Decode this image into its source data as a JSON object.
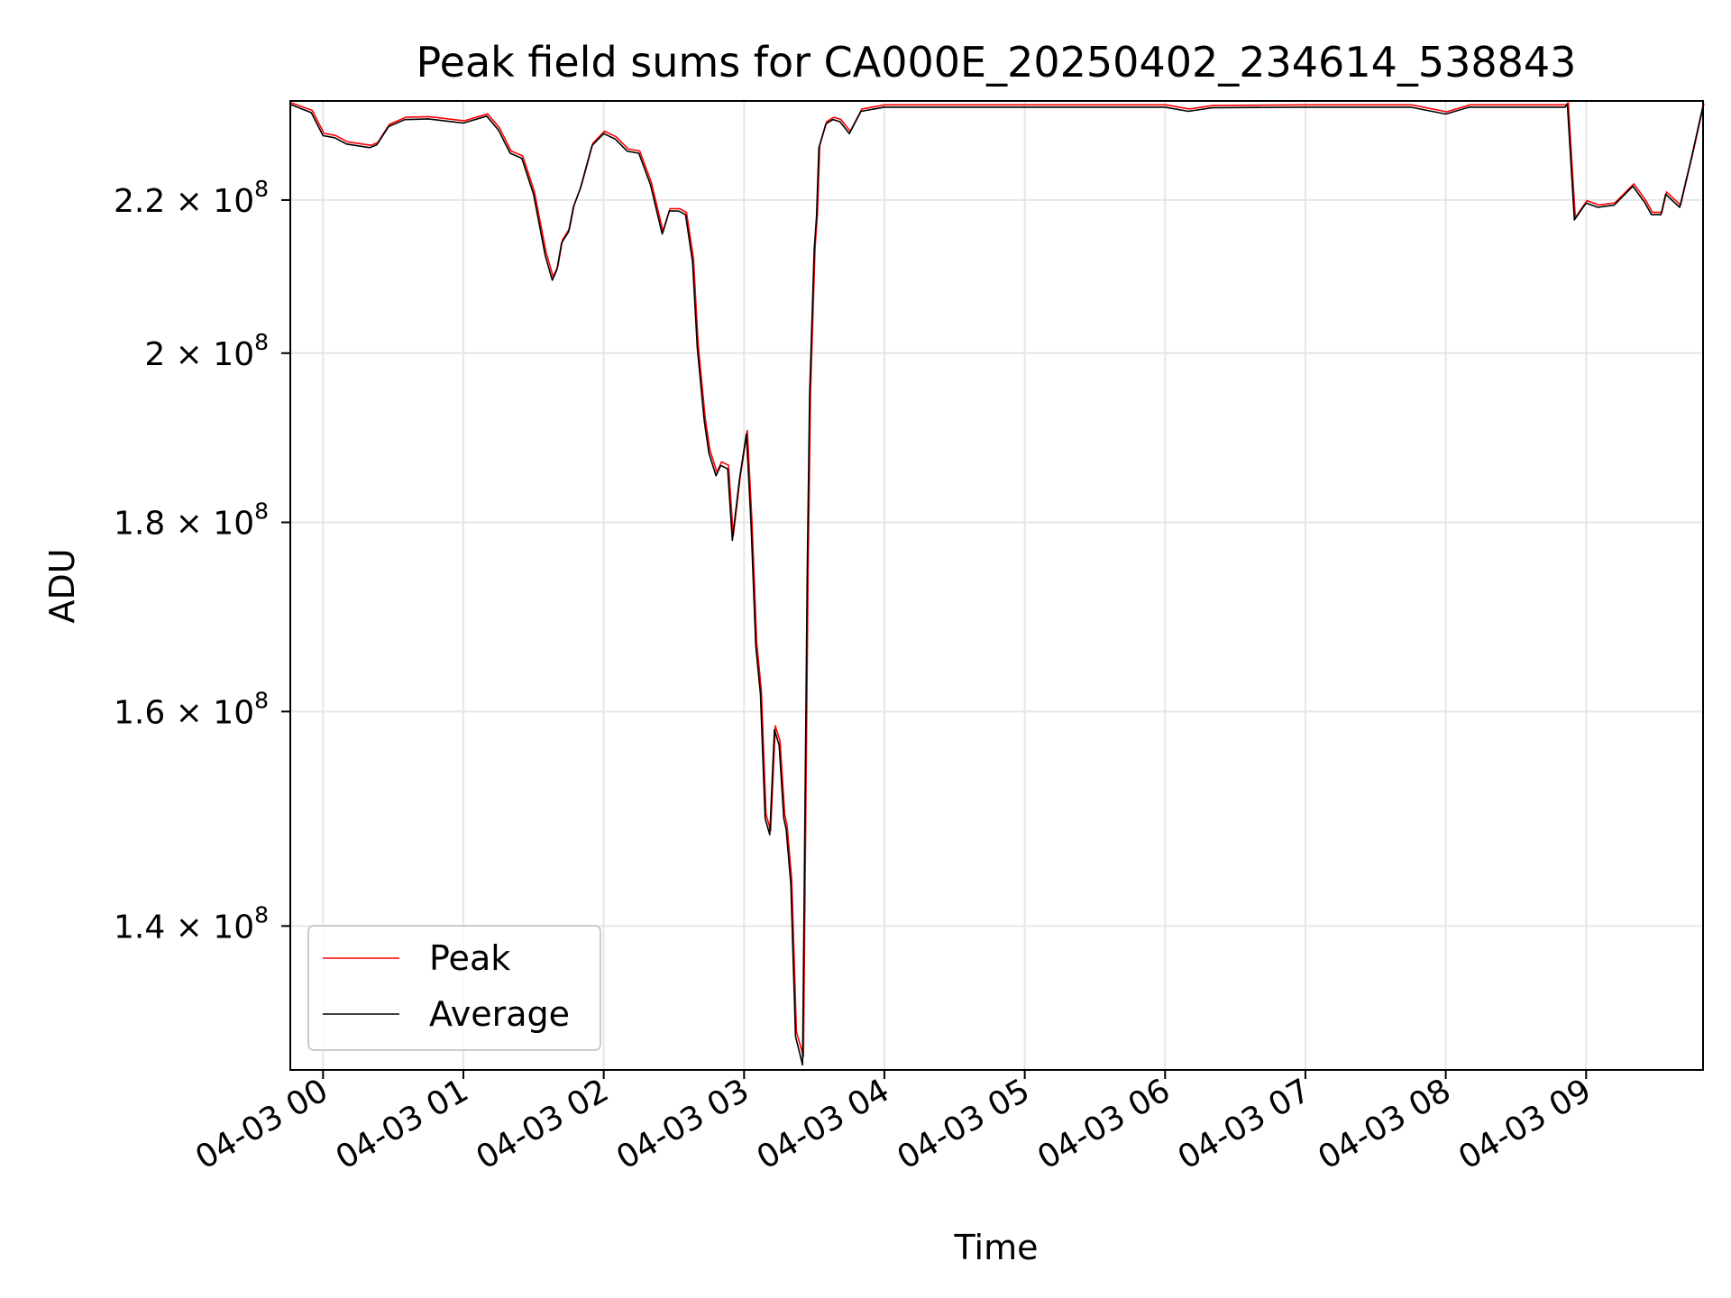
{
  "chart_data": {
    "type": "line",
    "title": "Peak field sums for CA000E_20250402_234614_538843",
    "xlabel": "Time",
    "ylabel": "ADU",
    "yscale": "log",
    "grid": true,
    "legend_position": "lower-left",
    "xlim": [
      "2025-04-02 23:46",
      "2025-04-03 09:50"
    ],
    "ylim": [
      128000000,
      234000000
    ],
    "x_ticks": [
      {
        "t": "2025-04-03 00:00",
        "label": "04-03 00"
      },
      {
        "t": "2025-04-03 01:00",
        "label": "04-03 01"
      },
      {
        "t": "2025-04-03 02:00",
        "label": "04-03 02"
      },
      {
        "t": "2025-04-03 03:00",
        "label": "04-03 03"
      },
      {
        "t": "2025-04-03 04:00",
        "label": "04-03 04"
      },
      {
        "t": "2025-04-03 05:00",
        "label": "04-03 05"
      },
      {
        "t": "2025-04-03 06:00",
        "label": "04-03 06"
      },
      {
        "t": "2025-04-03 07:00",
        "label": "04-03 07"
      },
      {
        "t": "2025-04-03 08:00",
        "label": "04-03 08"
      },
      {
        "t": "2025-04-03 09:00",
        "label": "04-03 09"
      }
    ],
    "y_ticks": [
      {
        "value": 140000000,
        "mantissa": "1.4",
        "exponent": "8"
      },
      {
        "value": 160000000,
        "mantissa": "1.6",
        "exponent": "8"
      },
      {
        "value": 180000000,
        "mantissa": "1.8",
        "exponent": "8"
      },
      {
        "value": 200000000,
        "mantissa": "2",
        "exponent": "8"
      },
      {
        "value": 220000000,
        "mantissa": "2.2",
        "exponent": "8"
      }
    ],
    "times": [
      "2025-04-02 23:46",
      "2025-04-02 23:55",
      "2025-04-03 00:00",
      "2025-04-03 00:05",
      "2025-04-03 00:10",
      "2025-04-03 00:20",
      "2025-04-03 00:23",
      "2025-04-03 00:28",
      "2025-04-03 00:35",
      "2025-04-03 00:45",
      "2025-04-03 01:00",
      "2025-04-03 01:10",
      "2025-04-03 01:15",
      "2025-04-03 01:20",
      "2025-04-03 01:25",
      "2025-04-03 01:30",
      "2025-04-03 01:35",
      "2025-04-03 01:38",
      "2025-04-03 01:40",
      "2025-04-03 01:42",
      "2025-04-03 01:45",
      "2025-04-03 01:47",
      "2025-04-03 01:50",
      "2025-04-03 01:55",
      "2025-04-03 02:00",
      "2025-04-03 02:05",
      "2025-04-03 02:10",
      "2025-04-03 02:15",
      "2025-04-03 02:20",
      "2025-04-03 02:25",
      "2025-04-03 02:28",
      "2025-04-03 02:32",
      "2025-04-03 02:35",
      "2025-04-03 02:38",
      "2025-04-03 02:40",
      "2025-04-03 02:43",
      "2025-04-03 02:45",
      "2025-04-03 02:48",
      "2025-04-03 02:50",
      "2025-04-03 02:53",
      "2025-04-03 02:55",
      "2025-04-03 02:58",
      "2025-04-03 03:01",
      "2025-04-03 03:03",
      "2025-04-03 03:05",
      "2025-04-03 03:07",
      "2025-04-03 03:09",
      "2025-04-03 03:11",
      "2025-04-03 03:13",
      "2025-04-03 03:15",
      "2025-04-03 03:17",
      "2025-04-03 03:18",
      "2025-04-03 03:20",
      "2025-04-03 03:22",
      "2025-04-03 03:25",
      "2025-04-03 03:27",
      "2025-04-03 03:28",
      "2025-04-03 03:30",
      "2025-04-03 03:31",
      "2025-04-03 03:32",
      "2025-04-03 03:35",
      "2025-04-03 03:38",
      "2025-04-03 03:41",
      "2025-04-03 03:45",
      "2025-04-03 03:50",
      "2025-04-03 03:55",
      "2025-04-03 04:00",
      "2025-04-03 04:02",
      "2025-04-03 04:05",
      "2025-04-03 04:20",
      "2025-04-03 05:00",
      "2025-04-03 06:00",
      "2025-04-03 06:10",
      "2025-04-03 06:20",
      "2025-04-03 07:00",
      "2025-04-03 07:45",
      "2025-04-03 08:00",
      "2025-04-03 08:10",
      "2025-04-03 08:51",
      "2025-04-03 08:52",
      "2025-04-03 08:55",
      "2025-04-03 09:00",
      "2025-04-03 09:05",
      "2025-04-03 09:12",
      "2025-04-03 09:20",
      "2025-04-03 09:25",
      "2025-04-03 09:28",
      "2025-04-03 09:32",
      "2025-04-03 09:34",
      "2025-04-03 09:40",
      "2025-04-03 09:45",
      "2025-04-03 09:50"
    ],
    "series": [
      {
        "name": "Peak",
        "color": "#ff0000",
        "values": [
          233600000,
          232500000,
          229200000,
          228900000,
          228000000,
          227500000,
          227900000,
          230500000,
          231500000,
          231600000,
          231000000,
          232000000,
          230000000,
          226700000,
          226000000,
          221000000,
          212800000,
          209600000,
          211000000,
          214500000,
          216000000,
          219200000,
          221800000,
          227800000,
          229500000,
          228700000,
          227000000,
          226700000,
          222300000,
          215600000,
          218700000,
          218700000,
          218200000,
          212000000,
          201000000,
          192000000,
          188200000,
          185600000,
          186800000,
          186400000,
          178400000,
          185100000,
          190500000,
          180000000,
          167000000,
          162000000,
          150000000,
          148500000,
          158500000,
          157000000,
          150000000,
          149000000,
          144000000,
          131000000,
          129000000,
          175000000,
          195000000,
          213500000,
          218000000,
          227500000,
          230900000,
          231500000,
          231200000,
          229500000,
          232700000,
          233000000,
          233300000,
          233300000,
          233300000,
          233300000,
          233300000,
          233300000,
          232700000,
          233200000,
          233300000,
          233300000,
          232300000,
          233300000,
          233300000,
          233600000,
          217500000,
          219800000,
          219200000,
          219500000,
          222100000,
          219900000,
          218200000,
          218200000,
          221000000,
          219200000,
          226000000,
          233500000
        ]
      },
      {
        "name": "Average",
        "color": "#000000",
        "values": [
          233500000,
          232300000,
          229000000,
          228700000,
          227800000,
          227300000,
          227700000,
          230300000,
          231300000,
          231400000,
          230800000,
          231800000,
          229800000,
          226500000,
          225800000,
          220800000,
          212500000,
          209300000,
          210700000,
          214200000,
          215700000,
          219000000,
          221600000,
          227600000,
          229300000,
          228500000,
          226800000,
          226500000,
          222100000,
          215400000,
          218500000,
          218500000,
          218000000,
          211700000,
          200700000,
          191700000,
          187900000,
          185300000,
          186500000,
          186100000,
          178000000,
          184800000,
          190200000,
          179700000,
          166700000,
          161700000,
          149700000,
          148200000,
          158200000,
          156700000,
          149700000,
          148700000,
          143700000,
          130700000,
          128400000,
          174700000,
          194700000,
          213300000,
          217800000,
          227300000,
          230700000,
          231300000,
          231000000,
          229300000,
          232500000,
          232800000,
          233100000,
          233100000,
          233100000,
          233100000,
          233100000,
          233100000,
          232500000,
          233000000,
          233100000,
          233100000,
          232100000,
          233100000,
          233100000,
          233500000,
          217300000,
          219600000,
          219000000,
          219300000,
          221900000,
          219700000,
          218000000,
          218000000,
          220800000,
          219000000,
          225800000,
          233300000
        ]
      }
    ]
  }
}
